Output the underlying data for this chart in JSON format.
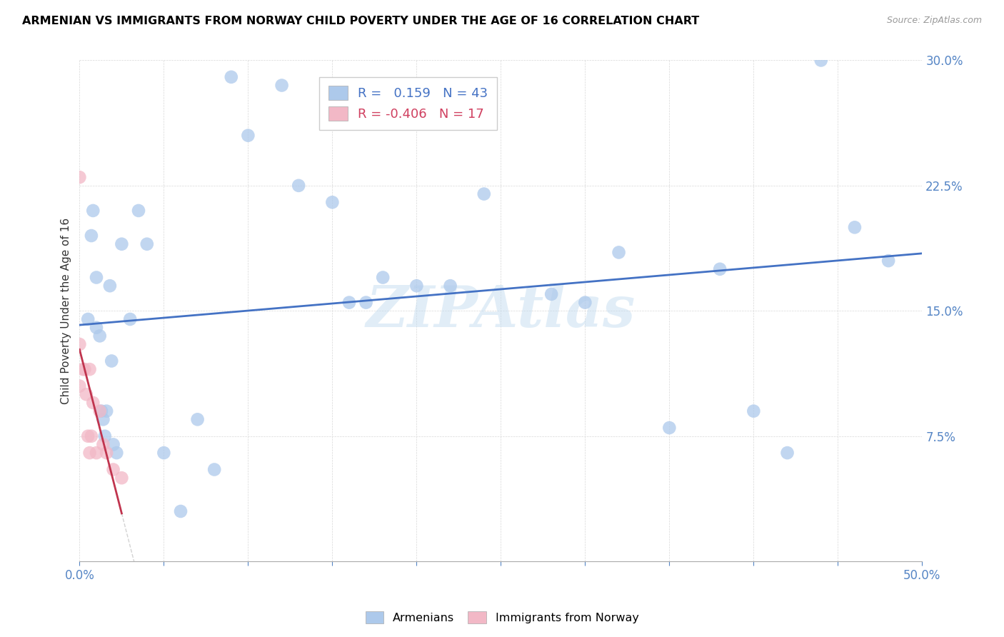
{
  "title": "ARMENIAN VS IMMIGRANTS FROM NORWAY CHILD POVERTY UNDER THE AGE OF 16 CORRELATION CHART",
  "source": "Source: ZipAtlas.com",
  "ylabel": "Child Poverty Under the Age of 16",
  "xlim": [
    0,
    0.5
  ],
  "ylim": [
    0,
    0.3
  ],
  "armenian_R": 0.159,
  "armenian_N": 43,
  "norway_R": -0.406,
  "norway_N": 17,
  "armenian_color": "#adc9eb",
  "norway_color": "#f2b8c6",
  "armenian_line_color": "#4472c4",
  "norway_line_color": "#c0344e",
  "legend_label_1": "Armenians",
  "legend_label_2": "Immigrants from Norway",
  "watermark": "ZIPAtlas",
  "armenian_x": [
    0.005,
    0.007,
    0.008,
    0.01,
    0.01,
    0.012,
    0.013,
    0.014,
    0.015,
    0.016,
    0.018,
    0.019,
    0.02,
    0.022,
    0.025,
    0.03,
    0.035,
    0.04,
    0.05,
    0.06,
    0.07,
    0.08,
    0.09,
    0.1,
    0.12,
    0.13,
    0.15,
    0.16,
    0.17,
    0.18,
    0.2,
    0.22,
    0.24,
    0.28,
    0.3,
    0.32,
    0.35,
    0.38,
    0.4,
    0.42,
    0.44,
    0.46,
    0.48
  ],
  "armenian_y": [
    0.145,
    0.195,
    0.21,
    0.17,
    0.14,
    0.135,
    0.09,
    0.085,
    0.075,
    0.09,
    0.165,
    0.12,
    0.07,
    0.065,
    0.19,
    0.145,
    0.21,
    0.19,
    0.065,
    0.03,
    0.085,
    0.055,
    0.29,
    0.255,
    0.285,
    0.225,
    0.215,
    0.155,
    0.155,
    0.17,
    0.165,
    0.165,
    0.22,
    0.16,
    0.155,
    0.185,
    0.08,
    0.175,
    0.09,
    0.065,
    0.3,
    0.2,
    0.18
  ],
  "norway_x": [
    0.0,
    0.0,
    0.0,
    0.002,
    0.003,
    0.004,
    0.005,
    0.006,
    0.006,
    0.007,
    0.008,
    0.01,
    0.012,
    0.014,
    0.016,
    0.02,
    0.025
  ],
  "norway_y": [
    0.23,
    0.13,
    0.105,
    0.115,
    0.115,
    0.1,
    0.075,
    0.115,
    0.065,
    0.075,
    0.095,
    0.065,
    0.09,
    0.07,
    0.065,
    0.055,
    0.05
  ]
}
